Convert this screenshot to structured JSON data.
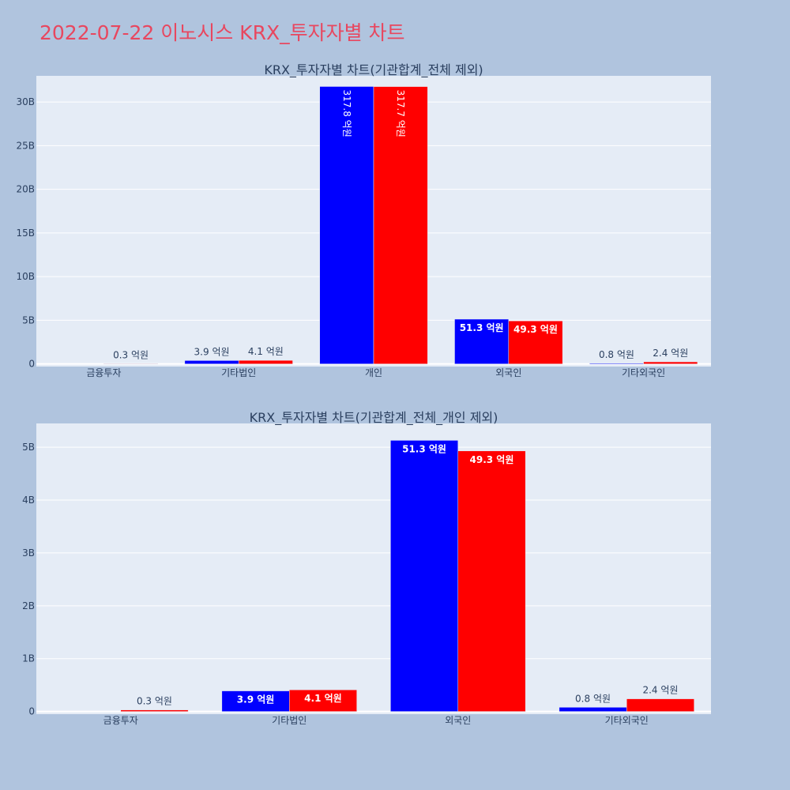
{
  "page": {
    "title": "2022-07-22 이노시스 KRX_투자자별 차트"
  },
  "colors": {
    "background": "#b0c4de",
    "plot_bg": "#e5ecf6",
    "grid": "#ffffff",
    "title": "#e8475f",
    "text": "#2a3f5f",
    "series_a": "#0000ff",
    "series_b": "#ff0000"
  },
  "chart_data": [
    {
      "type": "bar",
      "title": "KRX_투자자별 차트(기관합계_전체 제외)",
      "categories": [
        "금융투자",
        "기타법인",
        "개인",
        "외국인",
        "기타외국인"
      ],
      "series": [
        {
          "color": "#0000ff",
          "values": [
            0,
            390000000,
            31780000000,
            5130000000,
            80000000
          ],
          "labels": [
            "",
            "3.9 억원",
            "317.8 억원",
            "51.3 억원",
            "0.8 억원"
          ]
        },
        {
          "color": "#ff0000",
          "values": [
            30000000,
            410000000,
            31770000000,
            4930000000,
            240000000
          ],
          "labels": [
            "0.3 억원",
            "4.1 억원",
            "317.7 억원",
            "49.3 억원",
            "2.4 억원"
          ]
        }
      ],
      "yticks": [
        0,
        5000000000,
        10000000000,
        15000000000,
        20000000000,
        25000000000,
        30000000000
      ],
      "ytick_labels": [
        "0",
        "5B",
        "10B",
        "15B",
        "20B",
        "25B",
        "30B"
      ],
      "ylim": [
        -300000000,
        33000000000
      ],
      "grid": true
    },
    {
      "type": "bar",
      "title": "KRX_투자자별 차트(기관합계_전체_개인 제외)",
      "categories": [
        "금융투자",
        "기타법인",
        "외국인",
        "기타외국인"
      ],
      "series": [
        {
          "color": "#0000ff",
          "values": [
            0,
            390000000,
            5130000000,
            80000000
          ],
          "labels": [
            "",
            "3.9 억원",
            "51.3 억원",
            "0.8 억원"
          ]
        },
        {
          "color": "#ff0000",
          "values": [
            30000000,
            410000000,
            4930000000,
            240000000
          ],
          "labels": [
            "0.3 억원",
            "4.1 억원",
            "49.3 억원",
            "2.4 억원"
          ]
        }
      ],
      "yticks": [
        0,
        1000000000,
        2000000000,
        3000000000,
        4000000000,
        5000000000
      ],
      "ytick_labels": [
        "0",
        "1B",
        "2B",
        "3B",
        "4B",
        "5B"
      ],
      "ylim": [
        -50000000,
        5450000000
      ],
      "grid": true
    }
  ]
}
